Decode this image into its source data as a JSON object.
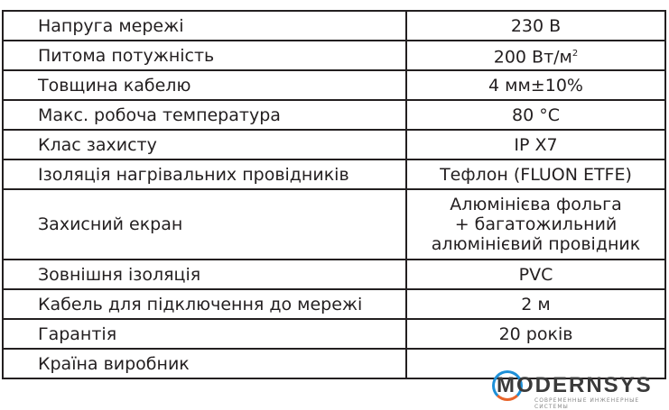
{
  "rows": [
    {
      "label": "Напруга мережі",
      "value": "230 В"
    },
    {
      "label": "Питома потужність",
      "value": "200 Вт/м",
      "sup": "2"
    },
    {
      "label": "Товщина кабелю",
      "value": "4 мм±10%"
    },
    {
      "label": "Макс. робоча температура",
      "value": "80 °С"
    },
    {
      "label": "Клас захисту",
      "value": "IP X7"
    },
    {
      "label": "Ізоляція нагрівальних провідників",
      "value": "Тефлон (FLUON ETFE)"
    },
    {
      "label": "Захисний екран",
      "value": "Алюмінієва фольга\n+ багатожильний\nалюмінієвий провідник"
    },
    {
      "label": "Зовнішня ізоляція",
      "value": "PVC"
    },
    {
      "label": "Кабель для підключення до мережі",
      "value": "2 м"
    },
    {
      "label": "Гарантія",
      "value": "20 років"
    },
    {
      "label": "Країна виробник",
      "value": ""
    }
  ],
  "watermark": {
    "text": "MODERNSYS",
    "tagline": "СОВРЕМЕННЫЕ ИНЖЕНЕРНЫЕ СИСТЕМЫ",
    "colors": [
      "#1e90d8",
      "#e8642a"
    ]
  }
}
